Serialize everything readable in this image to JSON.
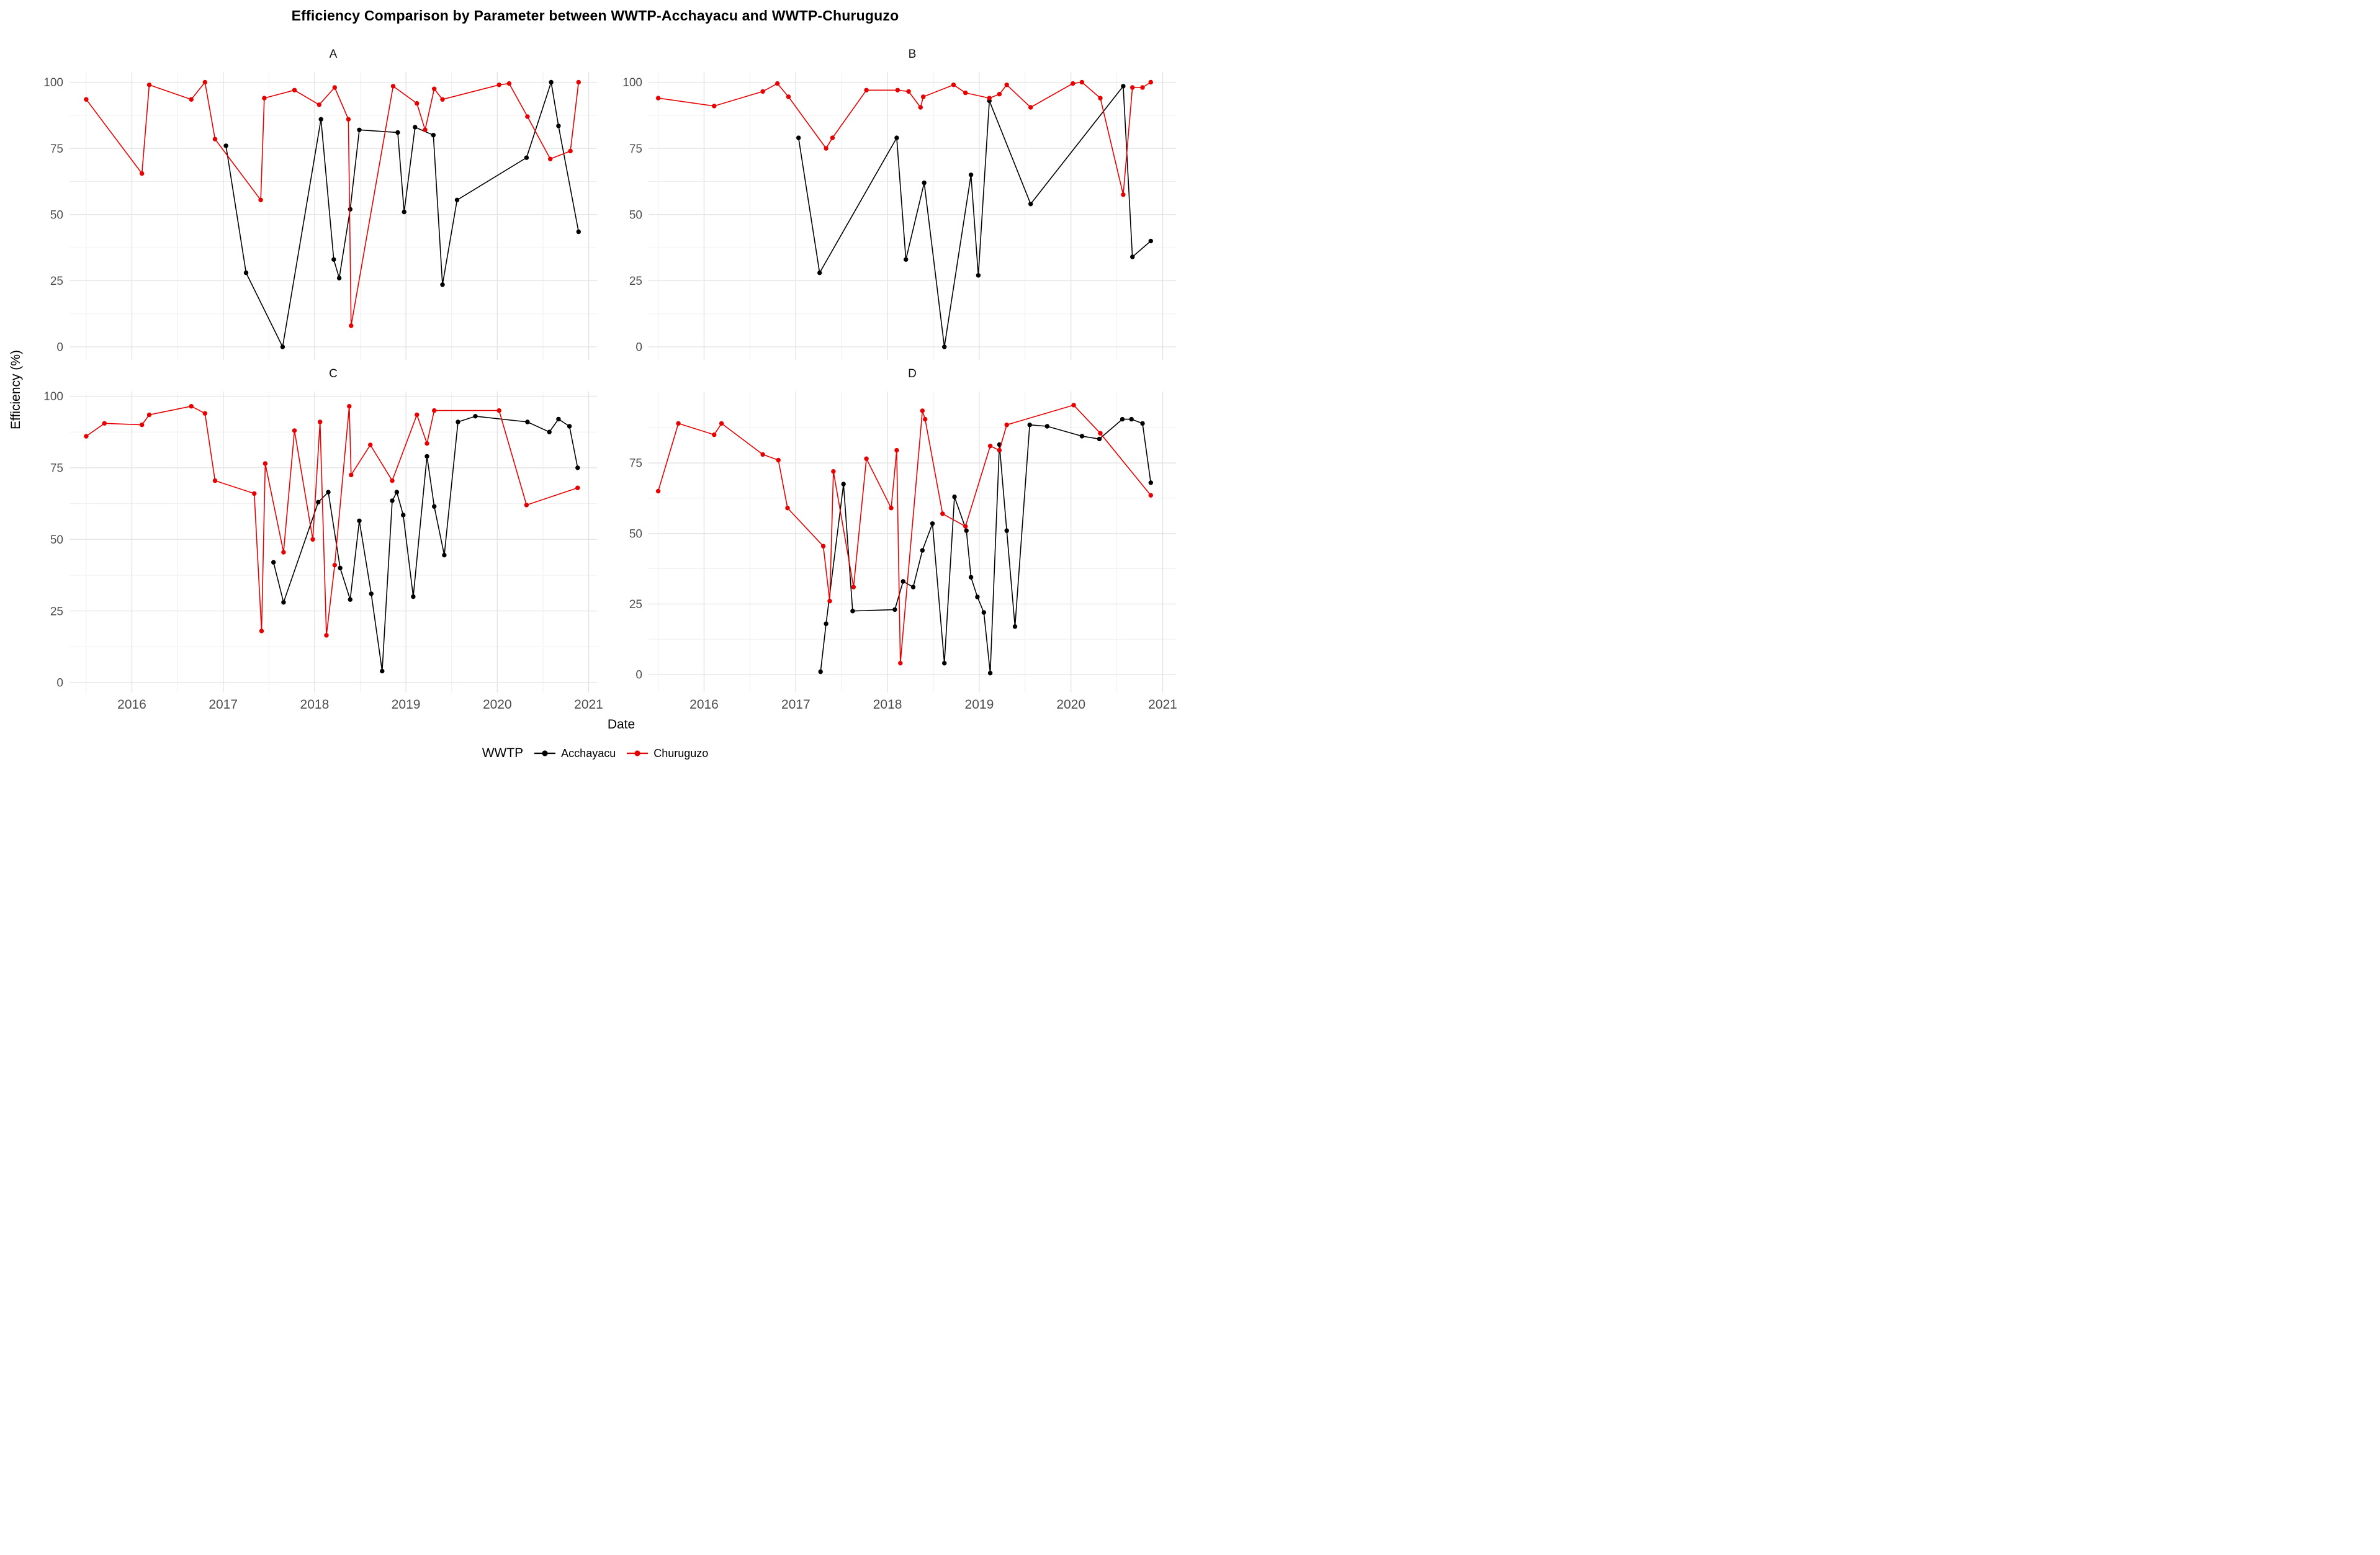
{
  "title": "Efficiency Comparison by Parameter between WWTP-Acchayacu and WWTP-Churuguzo",
  "axes": {
    "x_title": "Date",
    "y_title": "Efficiency (%)"
  },
  "legend": {
    "title": "WWTP",
    "items": [
      {
        "label": "Acchayacu",
        "color": "#000000"
      },
      {
        "label": "Churuguzo",
        "color": "#e60000"
      }
    ]
  },
  "style": {
    "background": "#ffffff",
    "grid_major": "#e2e2e2",
    "grid_minor": "#efefef",
    "axis_text": "#4d4d4d",
    "facet_label": "#111111"
  },
  "chart_data": [
    {
      "facet": "A",
      "type": "line",
      "xlabel": "Date",
      "ylabel": "Efficiency (%)",
      "x_ticks": [
        2016,
        2017,
        2018,
        2019,
        2020,
        2021
      ],
      "y_ticks": [
        0,
        25,
        50,
        75,
        100
      ],
      "xlim": [
        2015.3,
        2021.1
      ],
      "ylim": [
        0,
        100
      ],
      "grid": true,
      "series": [
        {
          "name": "Acchayacu",
          "points": [
            [
              2017.03,
              76
            ],
            [
              2017.25,
              28
            ],
            [
              2017.65,
              0
            ],
            [
              2018.07,
              86
            ],
            [
              2018.21,
              33
            ],
            [
              2018.27,
              26
            ],
            [
              2018.39,
              52
            ],
            [
              2018.49,
              82
            ],
            [
              2018.91,
              81
            ],
            [
              2018.98,
              51
            ],
            [
              2019.1,
              83
            ],
            [
              2019.3,
              80
            ],
            [
              2019.4,
              23.5
            ],
            [
              2019.56,
              55.5
            ],
            [
              2020.32,
              71.5
            ],
            [
              2020.59,
              100
            ],
            [
              2020.67,
              83.5
            ],
            [
              2020.89,
              43.5
            ]
          ]
        },
        {
          "name": "Churuguzo",
          "points": [
            [
              2015.5,
              93.5
            ],
            [
              2016.11,
              65.5
            ],
            [
              2016.19,
              99
            ],
            [
              2016.65,
              93.5
            ],
            [
              2016.8,
              100
            ],
            [
              2016.91,
              78.5
            ],
            [
              2017.41,
              55.5
            ],
            [
              2017.45,
              94
            ],
            [
              2017.78,
              97
            ],
            [
              2018.05,
              91.5
            ],
            [
              2018.22,
              98
            ],
            [
              2018.37,
              86
            ],
            [
              2018.4,
              8
            ],
            [
              2018.86,
              98.5
            ],
            [
              2019.12,
              92
            ],
            [
              2019.21,
              82
            ],
            [
              2019.31,
              97.5
            ],
            [
              2019.4,
              93.5
            ],
            [
              2020.02,
              99
            ],
            [
              2020.13,
              99.5
            ],
            [
              2020.33,
              87
            ],
            [
              2020.58,
              71
            ],
            [
              2020.8,
              74
            ],
            [
              2020.89,
              100
            ]
          ]
        }
      ]
    },
    {
      "facet": "B",
      "type": "line",
      "xlabel": "Date",
      "ylabel": "Efficiency (%)",
      "x_ticks": [
        2016,
        2017,
        2018,
        2019,
        2020,
        2021
      ],
      "y_ticks": [
        0,
        25,
        50,
        75,
        100
      ],
      "xlim": [
        2015.4,
        2021.1
      ],
      "ylim": [
        0,
        100
      ],
      "grid": true,
      "series": [
        {
          "name": "Acchayacu",
          "points": [
            [
              2017.03,
              79
            ],
            [
              2017.26,
              28
            ],
            [
              2018.1,
              79
            ],
            [
              2018.2,
              33
            ],
            [
              2018.4,
              62
            ],
            [
              2018.62,
              0
            ],
            [
              2018.91,
              65
            ],
            [
              2018.99,
              27
            ],
            [
              2019.11,
              93
            ],
            [
              2019.56,
              54
            ],
            [
              2020.57,
              98.5
            ],
            [
              2020.67,
              34
            ],
            [
              2020.87,
              40
            ]
          ]
        },
        {
          "name": "Churuguzo",
          "points": [
            [
              2015.5,
              94
            ],
            [
              2016.11,
              91
            ],
            [
              2016.64,
              96.5
            ],
            [
              2016.8,
              99.5
            ],
            [
              2016.92,
              94.5
            ],
            [
              2017.33,
              75
            ],
            [
              2017.4,
              79
            ],
            [
              2017.77,
              97
            ],
            [
              2018.11,
              97
            ],
            [
              2018.23,
              96.5
            ],
            [
              2018.36,
              90.5
            ],
            [
              2018.39,
              94.5
            ],
            [
              2018.72,
              99
            ],
            [
              2018.85,
              96
            ],
            [
              2019.11,
              94
            ],
            [
              2019.22,
              95.5
            ],
            [
              2019.3,
              99
            ],
            [
              2019.56,
              90.5
            ],
            [
              2020.02,
              99.5
            ],
            [
              2020.12,
              100
            ],
            [
              2020.32,
              94
            ],
            [
              2020.57,
              57.5
            ],
            [
              2020.67,
              98
            ],
            [
              2020.78,
              98
            ],
            [
              2020.87,
              100
            ]
          ]
        }
      ]
    },
    {
      "facet": "C",
      "type": "line",
      "xlabel": "Date",
      "ylabel": "Efficiency (%)",
      "x_ticks": [
        2016,
        2017,
        2018,
        2019,
        2020,
        2021
      ],
      "y_ticks": [
        0,
        25,
        50,
        75,
        100
      ],
      "xlim": [
        2015.3,
        2021.1
      ],
      "ylim": [
        0,
        100
      ],
      "grid": true,
      "series": [
        {
          "name": "Acchayacu",
          "points": [
            [
              2017.55,
              42
            ],
            [
              2017.66,
              28
            ],
            [
              2018.04,
              63
            ],
            [
              2018.15,
              66.5
            ],
            [
              2018.28,
              40
            ],
            [
              2018.39,
              29
            ],
            [
              2018.49,
              56.5
            ],
            [
              2018.62,
              31
            ],
            [
              2018.74,
              4
            ],
            [
              2018.85,
              63.5
            ],
            [
              2018.9,
              66.5
            ],
            [
              2018.97,
              58.5
            ],
            [
              2019.08,
              30
            ],
            [
              2019.23,
              79
            ],
            [
              2019.31,
              61.5
            ],
            [
              2019.42,
              44.5
            ],
            [
              2019.57,
              91
            ],
            [
              2019.76,
              93
            ],
            [
              2020.33,
              91
            ],
            [
              2020.57,
              87.5
            ],
            [
              2020.67,
              92
            ],
            [
              2020.79,
              89.5
            ],
            [
              2020.88,
              75
            ]
          ]
        },
        {
          "name": "Churuguzo",
          "points": [
            [
              2015.5,
              86
            ],
            [
              2015.7,
              90.5
            ],
            [
              2016.11,
              90
            ],
            [
              2016.19,
              93.5
            ],
            [
              2016.65,
              96.5
            ],
            [
              2016.8,
              94
            ],
            [
              2016.91,
              70.5
            ],
            [
              2017.34,
              66
            ],
            [
              2017.42,
              18
            ],
            [
              2017.46,
              76.5
            ],
            [
              2017.66,
              45.5
            ],
            [
              2017.78,
              88
            ],
            [
              2017.98,
              50
            ],
            [
              2018.06,
              91
            ],
            [
              2018.13,
              16.5
            ],
            [
              2018.22,
              41
            ],
            [
              2018.38,
              96.5
            ],
            [
              2018.4,
              72.5
            ],
            [
              2018.61,
              83
            ],
            [
              2018.85,
              70.5
            ],
            [
              2019.12,
              93.5
            ],
            [
              2019.23,
              83.5
            ],
            [
              2019.31,
              95
            ],
            [
              2020.02,
              95
            ],
            [
              2020.32,
              62
            ],
            [
              2020.88,
              68
            ]
          ]
        }
      ]
    },
    {
      "facet": "D",
      "type": "line",
      "xlabel": "Date",
      "ylabel": "Efficiency (%)",
      "x_ticks": [
        2016,
        2017,
        2018,
        2019,
        2020,
        2021
      ],
      "y_ticks": [
        0,
        25,
        50,
        75
      ],
      "xlim": [
        2015.4,
        2021.1
      ],
      "ylim": [
        0,
        96
      ],
      "grid": true,
      "series": [
        {
          "name": "Acchayacu",
          "points": [
            [
              2017.27,
              1
            ],
            [
              2017.33,
              18
            ],
            [
              2017.52,
              67.5
            ],
            [
              2017.62,
              22.5
            ],
            [
              2018.08,
              23
            ],
            [
              2018.17,
              33
            ],
            [
              2018.28,
              31
            ],
            [
              2018.38,
              44
            ],
            [
              2018.49,
              53.5
            ],
            [
              2018.62,
              4
            ],
            [
              2018.73,
              63
            ],
            [
              2018.86,
              51
            ],
            [
              2018.91,
              34.5
            ],
            [
              2018.98,
              27.5
            ],
            [
              2019.05,
              22
            ],
            [
              2019.12,
              0.5
            ],
            [
              2019.22,
              81.5
            ],
            [
              2019.3,
              51
            ],
            [
              2019.39,
              17
            ],
            [
              2019.55,
              88.5
            ],
            [
              2019.74,
              88
            ],
            [
              2020.12,
              84.5
            ],
            [
              2020.31,
              83.5
            ],
            [
              2020.56,
              90.5
            ],
            [
              2020.66,
              90.5
            ],
            [
              2020.78,
              89
            ],
            [
              2020.87,
              68
            ]
          ]
        },
        {
          "name": "Churuguzo",
          "points": [
            [
              2015.5,
              65
            ],
            [
              2015.72,
              89
            ],
            [
              2016.11,
              85
            ],
            [
              2016.19,
              89
            ],
            [
              2016.64,
              78
            ],
            [
              2016.81,
              76
            ],
            [
              2016.91,
              59
            ],
            [
              2017.3,
              45.5
            ],
            [
              2017.37,
              26
            ],
            [
              2017.41,
              72
            ],
            [
              2017.63,
              31
            ],
            [
              2017.77,
              76.5
            ],
            [
              2018.04,
              59
            ],
            [
              2018.1,
              79.5
            ],
            [
              2018.14,
              4
            ],
            [
              2018.38,
              93.5
            ],
            [
              2018.41,
              90.5
            ],
            [
              2018.6,
              57
            ],
            [
              2018.85,
              52.5
            ],
            [
              2019.12,
              81
            ],
            [
              2019.22,
              79.5
            ],
            [
              2019.3,
              88.5
            ],
            [
              2020.03,
              95.5
            ],
            [
              2020.32,
              85.5
            ],
            [
              2020.87,
              63.5
            ]
          ]
        }
      ]
    }
  ]
}
